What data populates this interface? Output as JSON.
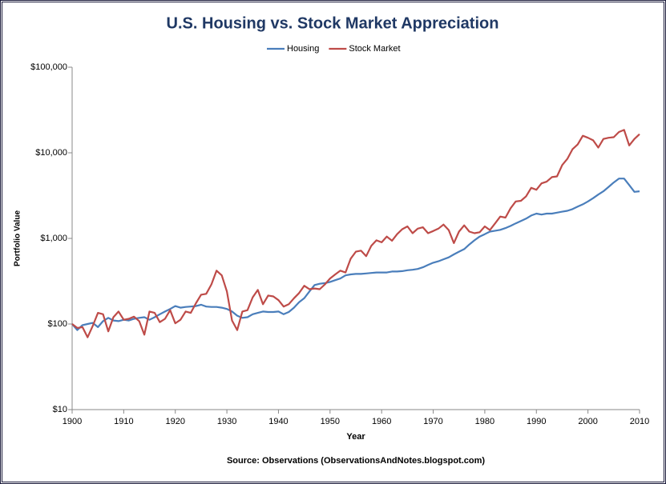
{
  "chart_data": {
    "type": "line",
    "title": "U.S. Housing vs. Stock Market Appreciation",
    "xlabel": "Year",
    "ylabel": "Portfolio Value",
    "source": "Source: Observations (ObservationsAndNotes.blogspot.com)",
    "log_y": true,
    "grid": false,
    "legend": "top",
    "xlim": [
      1900,
      2010
    ],
    "xticks": [
      1900,
      1910,
      1920,
      1930,
      1940,
      1950,
      1960,
      1970,
      1980,
      1990,
      2000,
      2010
    ],
    "ylim": [
      10,
      100000
    ],
    "yticks": [
      {
        "value": 10,
        "label": "$10"
      },
      {
        "value": 100,
        "label": "$100"
      },
      {
        "value": 1000,
        "label": "$1,000"
      },
      {
        "value": 10000,
        "label": "$10,000"
      },
      {
        "value": 100000,
        "label": "$100,000"
      }
    ],
    "x": [
      1900,
      1901,
      1902,
      1903,
      1904,
      1905,
      1906,
      1907,
      1908,
      1909,
      1910,
      1911,
      1912,
      1913,
      1914,
      1915,
      1916,
      1917,
      1918,
      1919,
      1920,
      1921,
      1922,
      1923,
      1924,
      1925,
      1926,
      1927,
      1928,
      1929,
      1930,
      1931,
      1932,
      1933,
      1934,
      1935,
      1936,
      1937,
      1938,
      1939,
      1940,
      1941,
      1942,
      1943,
      1944,
      1945,
      1946,
      1947,
      1948,
      1949,
      1950,
      1951,
      1952,
      1953,
      1954,
      1955,
      1956,
      1957,
      1958,
      1959,
      1960,
      1961,
      1962,
      1963,
      1964,
      1965,
      1966,
      1967,
      1968,
      1969,
      1970,
      1971,
      1972,
      1973,
      1974,
      1975,
      1976,
      1977,
      1978,
      1979,
      1980,
      1981,
      1982,
      1983,
      1984,
      1985,
      1986,
      1987,
      1988,
      1989,
      1990,
      1991,
      1992,
      1993,
      1994,
      1995,
      1996,
      1997,
      1998,
      1999,
      2000,
      2001,
      2002,
      2003,
      2004,
      2005,
      2006,
      2007,
      2008,
      2009,
      2010
    ],
    "series": [
      {
        "name": "Housing",
        "color": "#4a7ebb",
        "values": [
          100,
          85,
          97,
          100,
          103,
          92,
          108,
          118,
          110,
          108,
          112,
          110,
          115,
          118,
          120,
          112,
          120,
          130,
          140,
          150,
          162,
          155,
          158,
          160,
          162,
          168,
          160,
          158,
          158,
          155,
          150,
          140,
          125,
          118,
          120,
          130,
          135,
          140,
          138,
          138,
          140,
          130,
          138,
          155,
          180,
          200,
          240,
          285,
          295,
          300,
          310,
          325,
          340,
          370,
          380,
          385,
          385,
          390,
          395,
          400,
          400,
          400,
          410,
          410,
          415,
          425,
          430,
          440,
          460,
          490,
          520,
          540,
          570,
          600,
          650,
          700,
          750,
          850,
          950,
          1050,
          1120,
          1200,
          1230,
          1260,
          1320,
          1400,
          1500,
          1600,
          1700,
          1850,
          1950,
          1900,
          1950,
          1950,
          2000,
          2050,
          2100,
          2200,
          2350,
          2500,
          2700,
          2950,
          3250,
          3550,
          4000,
          4500,
          5000,
          5000,
          4200,
          3500,
          3550
        ]
      },
      {
        "name": "Stock Market",
        "color": "#be4b48",
        "values": [
          100,
          90,
          92,
          70,
          95,
          135,
          130,
          82,
          120,
          140,
          112,
          115,
          122,
          108,
          75,
          140,
          135,
          105,
          115,
          145,
          102,
          112,
          140,
          135,
          175,
          220,
          225,
          290,
          420,
          370,
          240,
          110,
          85,
          140,
          145,
          205,
          250,
          170,
          215,
          210,
          190,
          160,
          170,
          200,
          230,
          280,
          255,
          260,
          255,
          290,
          340,
          380,
          420,
          400,
          580,
          700,
          720,
          620,
          820,
          950,
          900,
          1050,
          940,
          1120,
          1280,
          1380,
          1150,
          1300,
          1350,
          1150,
          1220,
          1300,
          1450,
          1250,
          880,
          1200,
          1420,
          1200,
          1150,
          1180,
          1380,
          1250,
          1500,
          1800,
          1750,
          2250,
          2700,
          2750,
          3100,
          3900,
          3700,
          4400,
          4600,
          5200,
          5300,
          7200,
          8500,
          11000,
          12500,
          15800,
          15000,
          14000,
          11500,
          14500,
          15000,
          15200,
          17500,
          18500,
          12200,
          14500,
          16500
        ]
      }
    ]
  }
}
